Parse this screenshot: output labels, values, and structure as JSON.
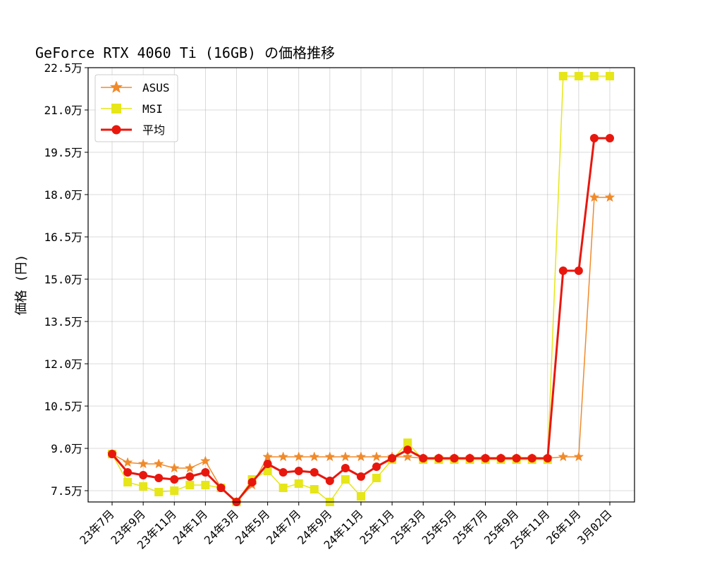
{
  "chart_data": {
    "type": "line",
    "title": "GeForce RTX 4060 Ti (16GB) の価格推移",
    "ylabel": "価格 (円)",
    "xlabel": "",
    "ylim": [
      71000,
      225000
    ],
    "yticks": [
      75000,
      90000,
      105000,
      120000,
      135000,
      150000,
      165000,
      180000,
      195000,
      210000,
      225000
    ],
    "ytick_labels": [
      "7.5万",
      "9.0万",
      "10.5万",
      "12.0万",
      "13.5万",
      "15.0万",
      "16.5万",
      "18.0万",
      "19.5万",
      "21.0万",
      "22.5万"
    ],
    "xtick_labels": [
      "23年7月",
      "23年9月",
      "23年11月",
      "24年1月",
      "24年3月",
      "24年5月",
      "24年7月",
      "24年9月",
      "24年11月",
      "25年1月",
      "25年3月",
      "25年5月",
      "25年7月",
      "25年9月",
      "25年11月",
      "26年1月",
      "3月02日"
    ],
    "xtick_positions": [
      0,
      2,
      4,
      6,
      8,
      10,
      12,
      14,
      16,
      18,
      20,
      22,
      24,
      26,
      28,
      30,
      32
    ],
    "x": [
      0,
      1,
      2,
      3,
      4,
      5,
      6,
      7,
      8,
      9,
      10,
      11,
      12,
      13,
      14,
      15,
      16,
      17,
      18,
      19,
      20,
      21,
      22,
      23,
      24,
      25,
      26,
      27,
      28,
      29,
      30,
      31,
      32
    ],
    "grid": true,
    "legend_position": "top-left",
    "series": [
      {
        "name": "ASUS",
        "color": "#f08a2a",
        "marker": "star",
        "values": [
          88000,
          85000,
          84500,
          84500,
          83000,
          83000,
          85500,
          76000,
          71000,
          77000,
          87000,
          87000,
          87000,
          87000,
          87000,
          87000,
          87000,
          87000,
          87000,
          87000,
          86500,
          86500,
          86500,
          86500,
          86500,
          86500,
          86500,
          86500,
          86500,
          87000,
          87000,
          179000,
          179000
        ]
      },
      {
        "name": "MSI",
        "color": "#e6e619",
        "marker": "square",
        "values": [
          88000,
          78000,
          76500,
          74500,
          75000,
          77000,
          77000,
          76000,
          71000,
          79000,
          82000,
          76000,
          77500,
          75500,
          71000,
          79000,
          73000,
          79500,
          86000,
          92000,
          86000,
          86000,
          86000,
          86000,
          86000,
          86000,
          86000,
          86000,
          86000,
          222000,
          222000,
          222000,
          222000
        ]
      },
      {
        "name": "平均",
        "color": "#e8170e",
        "marker": "circle",
        "values": [
          88000,
          81500,
          80500,
          79500,
          79000,
          80000,
          81500,
          76000,
          71000,
          78000,
          84500,
          81500,
          82000,
          81500,
          78500,
          83000,
          80000,
          83500,
          86500,
          89500,
          86500,
          86500,
          86500,
          86500,
          86500,
          86500,
          86500,
          86500,
          86500,
          153000,
          153000,
          200000,
          200000
        ]
      }
    ]
  }
}
